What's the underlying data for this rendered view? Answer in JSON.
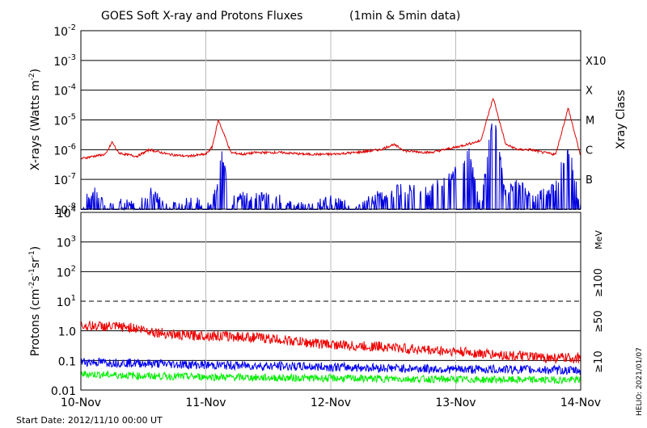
{
  "chart_data": [
    {
      "type": "line",
      "title": "GOES Soft X-ray and Protons Fluxes",
      "subtitle": "(1min & 5min data)",
      "ylabel": "X-rays (Watts m-2)",
      "ylabel_main": "X-rays (Watts m",
      "ylabel_exp": "-2",
      "ylabel_close": ")",
      "y2label": "Xray Class",
      "yscale": "log",
      "ylim": [
        1e-08,
        0.01
      ],
      "yticks": [
        {
          "base": "10",
          "exp": "-2"
        },
        {
          "base": "10",
          "exp": "-3"
        },
        {
          "base": "10",
          "exp": "-4"
        },
        {
          "base": "10",
          "exp": "-5"
        },
        {
          "base": "10",
          "exp": "-6"
        },
        {
          "base": "10",
          "exp": "-7"
        },
        {
          "base": "10",
          "exp": "-8"
        }
      ],
      "class_labels": [
        "X10",
        "X",
        "M",
        "C",
        "B"
      ],
      "grid": true,
      "series": [
        {
          "color": "#dd0000",
          "x": [
            0,
            0.1,
            0.2,
            0.25,
            0.3,
            0.35,
            0.45,
            0.55,
            0.7,
            0.85,
            1.0,
            1.05,
            1.1,
            1.15,
            1.2,
            1.3,
            1.4,
            1.6,
            1.8,
            2.0,
            2.2,
            2.4,
            2.5,
            2.6,
            2.8,
            3.0,
            3.2,
            3.3,
            3.4,
            3.5,
            3.6,
            3.7,
            3.8,
            3.9,
            4.0
          ],
          "values": [
            5e-07,
            6e-07,
            7e-07,
            1.8e-06,
            8e-07,
            7e-07,
            6e-07,
            1e-06,
            7e-07,
            6e-07,
            7e-07,
            1.2e-06,
            1e-05,
            3e-06,
            8e-07,
            7e-07,
            8e-07,
            8e-07,
            7e-07,
            7e-07,
            8e-07,
            1e-06,
            1.5e-06,
            9e-07,
            8e-07,
            1.2e-06,
            2e-06,
            5.5e-05,
            1.5e-06,
            1e-06,
            1e-06,
            8e-07,
            7e-07,
            2.5e-05,
            6e-07
          ]
        },
        {
          "color": "#0000dd",
          "x": [
            0,
            0.1,
            0.2,
            0.3,
            0.45,
            0.55,
            0.7,
            0.9,
            1.0,
            1.1,
            1.12,
            1.2,
            1.4,
            1.6,
            1.8,
            2.0,
            2.2,
            2.4,
            2.6,
            2.8,
            3.0,
            3.1,
            3.2,
            3.3,
            3.4,
            3.5,
            3.6,
            3.8,
            3.9,
            4.0
          ],
          "values": [
            1e-08,
            5e-08,
            1e-08,
            2e-08,
            1e-08,
            4e-08,
            1e-08,
            2e-08,
            1e-08,
            5e-08,
            1e-06,
            2e-08,
            3e-08,
            2e-08,
            1e-08,
            2e-08,
            1e-08,
            3e-08,
            5e-08,
            4e-08,
            2e-07,
            1e-06,
            1e-08,
            2e-05,
            3e-08,
            1e-07,
            2e-08,
            6e-08,
            1.5e-06,
            1e-08
          ]
        }
      ]
    },
    {
      "type": "line",
      "ylabel": "Protons (cm-2s-1sr-1)",
      "ylabel_main": "Protons (cm",
      "ylabel_e1": "-2",
      "ylabel_m2": "s",
      "ylabel_e2": "-1",
      "ylabel_m3": "sr",
      "ylabel_e3": "-1",
      "ylabel_close": ")",
      "y2label": "MeV",
      "yscale": "log",
      "ylim": [
        0.01,
        10000
      ],
      "yticks": [
        {
          "base": "10",
          "exp": "4"
        },
        {
          "base": "10",
          "exp": "3"
        },
        {
          "base": "10",
          "exp": "2"
        },
        {
          "base": "10",
          "exp": "1"
        },
        {
          "base": "10",
          "exp": ""
        },
        {
          "base": "10",
          "exp": "-1"
        },
        {
          "base": "10",
          "exp": "-2"
        }
      ],
      "yticks_p": [
        {
          "base": "10",
          "exp": "4"
        },
        {
          "base": "10",
          "exp": "3"
        },
        {
          "base": "10",
          "exp": "2"
        },
        {
          "base": "10",
          "exp": "1"
        },
        {
          "base": "1.0",
          "exp": ""
        },
        {
          "base": "0.1",
          "exp": ""
        },
        {
          "base": "0.01",
          "exp": ""
        }
      ],
      "threshold": 10,
      "grid": true,
      "series": [
        {
          "name": "≥10",
          "color": "#ee0000",
          "x": [
            0,
            0.2,
            0.4,
            0.6,
            0.8,
            1.0,
            1.2,
            1.4,
            1.6,
            1.8,
            2.0,
            2.2,
            2.4,
            2.6,
            2.8,
            3.0,
            3.2,
            3.4,
            3.6,
            3.8,
            4.0
          ],
          "values": [
            1.5,
            1.4,
            1.3,
            0.9,
            0.7,
            0.7,
            0.65,
            0.6,
            0.5,
            0.4,
            0.35,
            0.3,
            0.3,
            0.25,
            0.22,
            0.2,
            0.17,
            0.15,
            0.13,
            0.12,
            0.12
          ]
        },
        {
          "name": "≥50",
          "color": "#0000ee",
          "x": [
            0,
            0.5,
            1.0,
            1.5,
            2.0,
            2.5,
            3.0,
            3.5,
            4.0
          ],
          "values": [
            0.09,
            0.08,
            0.07,
            0.065,
            0.06,
            0.055,
            0.05,
            0.05,
            0.045
          ]
        },
        {
          "name": "≥100",
          "color": "#00ee00",
          "x": [
            0,
            0.5,
            1.0,
            1.5,
            2.0,
            2.5,
            3.0,
            3.5,
            4.0
          ],
          "values": [
            0.035,
            0.03,
            0.028,
            0.026,
            0.025,
            0.024,
            0.023,
            0.022,
            0.022
          ]
        }
      ]
    }
  ],
  "x_axis": {
    "categories": [
      "10-Nov",
      "11-Nov",
      "12-Nov",
      "13-Nov",
      "14-Nov"
    ]
  },
  "footer": {
    "start_date": "Start Date: 2012/11/10 00:00 UT",
    "credit": "HELIO: 2021/01/07"
  }
}
